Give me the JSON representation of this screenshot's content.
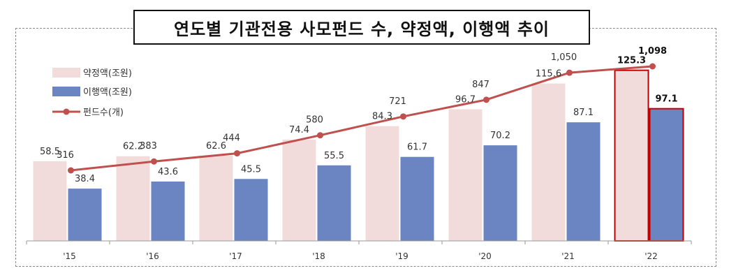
{
  "chart_data": {
    "type": "bar",
    "title": "연도별 기관전용 사모펀드 수, 약정액, 이행액 추이",
    "categories": [
      "'15",
      "'16",
      "'17",
      "'18",
      "'19",
      "'20",
      "'21",
      "'22"
    ],
    "series": [
      {
        "name": "약정액(조원)",
        "type": "bar",
        "color": "#f2dcdb",
        "values": [
          58.5,
          62.2,
          62.6,
          74.4,
          84.3,
          96.7,
          115.6,
          125.3
        ]
      },
      {
        "name": "이행액(조원)",
        "type": "bar",
        "color": "#6a85c2",
        "values": [
          38.4,
          43.6,
          45.5,
          55.5,
          61.7,
          70.2,
          87.1,
          97.1
        ]
      },
      {
        "name": "펀드수(개)",
        "type": "line",
        "color": "#c0504d",
        "values": [
          316,
          383,
          444,
          580,
          721,
          847,
          1050,
          1098
        ],
        "labels": [
          "316",
          "383",
          "444",
          "580",
          "721",
          "847",
          "1,050",
          "1,098"
        ]
      }
    ],
    "highlight_category": "'22",
    "highlight_color": "#c00000",
    "legend_position": "top-left",
    "grid": false
  }
}
